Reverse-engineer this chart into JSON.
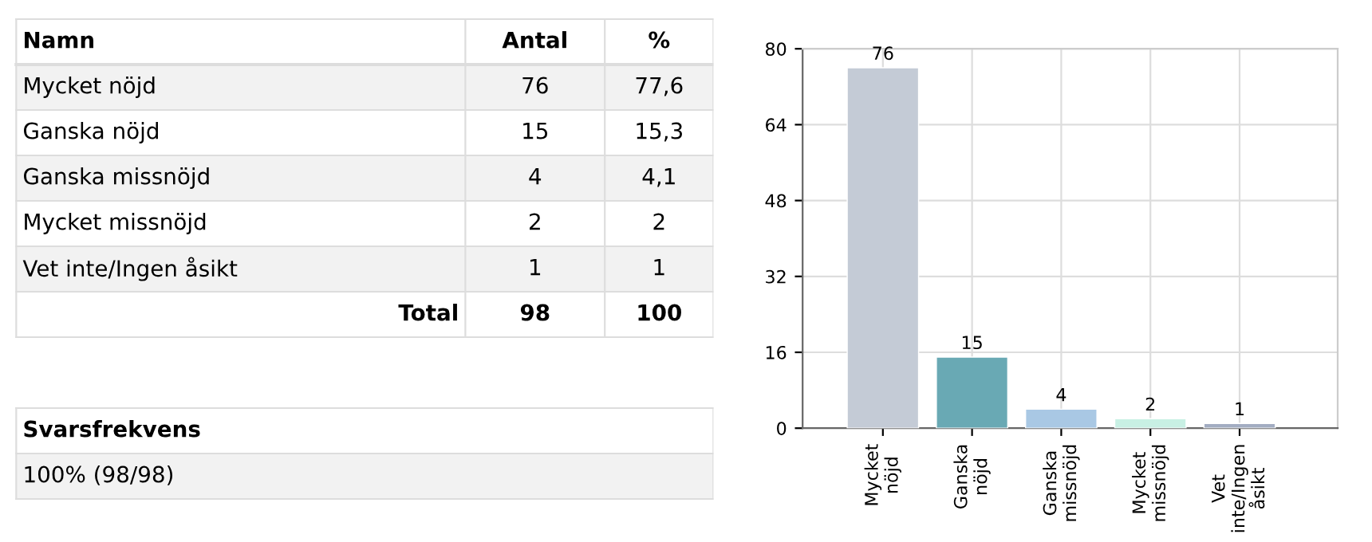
{
  "chart_data": [
    {
      "type": "other",
      "legend_title": "Namn",
      "categories": [
        "Mycket nöjd",
        "Ganska nöjd",
        "Ganska missnöjd",
        "Mycket missnöjd",
        "Vet inte/Ingen åsikt"
      ],
      "series": [
        {
          "name": "Antal",
          "values": [
            76,
            15,
            4,
            2,
            1
          ],
          "value_labels": [
            "76",
            "15",
            "4",
            "2",
            "1"
          ]
        },
        {
          "name": "%",
          "values": [
            77.6,
            15.3,
            4.1,
            2,
            1
          ],
          "value_labels": [
            "77,6",
            "15,3",
            "4,1",
            "2",
            "1"
          ]
        }
      ],
      "totals": [
        "98",
        "100"
      ],
      "annotations": [
        "Total",
        "Svarsfrekvens",
        "100% (98/98)"
      ]
    },
    {
      "type": "bar",
      "categories": [
        "Mycket\nnöjd",
        "Ganska\nnöjd",
        "Ganska\nmissnöjd",
        "Mycket\nmissnöjd",
        "Vet\ninte/Ingen\nåsikt"
      ],
      "values": [
        76,
        15,
        4,
        2,
        1
      ],
      "colors": [
        "#c4cbd6",
        "#69a9b4",
        "#a9c8e4",
        "#c8f0e4",
        "#a3adc2"
      ],
      "ylim": [
        0,
        80
      ],
      "yticks": [
        0,
        16,
        32,
        48,
        64,
        80
      ],
      "grid": true,
      "data_labels": true
    }
  ]
}
